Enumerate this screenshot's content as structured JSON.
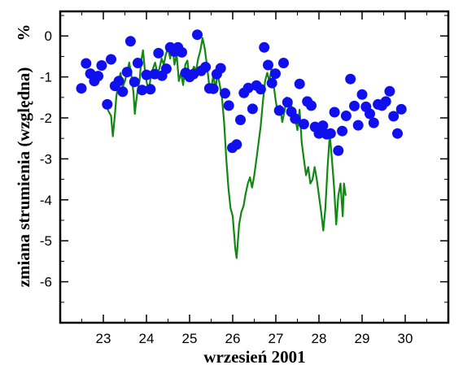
{
  "chart_data": {
    "type": "scatter",
    "xlabel": "wrzesień  2001",
    "ylabel": "zmiana strumienia (względna)",
    "yunit": "%",
    "xlim": [
      22.0,
      31.0
    ],
    "ylim": [
      -7.0,
      0.6
    ],
    "x_ticks": [
      23,
      24,
      25,
      26,
      27,
      28,
      29,
      30
    ],
    "y_ticks": [
      0,
      -1,
      -2,
      -3,
      -4,
      -5,
      -6
    ],
    "grid": false,
    "legend": "none",
    "colors": {
      "points": "#1010ee",
      "line": "#118811",
      "axes": "#000000"
    },
    "series": [
      {
        "kind": "points",
        "points": [
          [
            22.49,
            -1.28
          ],
          [
            22.6,
            -0.67
          ],
          [
            22.7,
            -0.92
          ],
          [
            22.79,
            -1.1
          ],
          [
            22.88,
            -0.98
          ],
          [
            22.96,
            -0.72
          ],
          [
            23.09,
            -1.67
          ],
          [
            23.18,
            -0.57
          ],
          [
            23.27,
            -1.22
          ],
          [
            23.36,
            -1.1
          ],
          [
            23.45,
            -1.36
          ],
          [
            23.55,
            -0.88
          ],
          [
            23.63,
            -0.13
          ],
          [
            23.72,
            -1.12
          ],
          [
            23.8,
            -0.66
          ],
          [
            23.9,
            -1.32
          ],
          [
            24.0,
            -0.95
          ],
          [
            24.09,
            -1.3
          ],
          [
            24.19,
            -0.93
          ],
          [
            24.28,
            -0.42
          ],
          [
            24.36,
            -0.97
          ],
          [
            24.46,
            -0.8
          ],
          [
            24.55,
            -0.28
          ],
          [
            24.65,
            -0.38
          ],
          [
            24.73,
            -0.28
          ],
          [
            24.82,
            -0.4
          ],
          [
            24.91,
            -0.9
          ],
          [
            25.0,
            -1.0
          ],
          [
            25.09,
            -0.93
          ],
          [
            25.18,
            0.03
          ],
          [
            25.27,
            -0.85
          ],
          [
            25.37,
            -0.76
          ],
          [
            25.46,
            -1.28
          ],
          [
            25.55,
            -1.29
          ],
          [
            25.63,
            -0.93
          ],
          [
            25.72,
            -0.79
          ],
          [
            25.82,
            -1.4
          ],
          [
            25.91,
            -1.7
          ],
          [
            25.99,
            -2.73
          ],
          [
            26.09,
            -2.65
          ],
          [
            26.18,
            -2.05
          ],
          [
            26.26,
            -1.39
          ],
          [
            26.36,
            -1.27
          ],
          [
            26.46,
            -1.78
          ],
          [
            26.55,
            -1.21
          ],
          [
            26.65,
            -1.3
          ],
          [
            26.73,
            -0.28
          ],
          [
            26.82,
            -0.71
          ],
          [
            26.91,
            -1.15
          ],
          [
            26.99,
            -0.92
          ],
          [
            27.08,
            -1.82
          ],
          [
            27.18,
            -0.66
          ],
          [
            27.27,
            -1.62
          ],
          [
            27.36,
            -1.85
          ],
          [
            27.45,
            -2.02
          ],
          [
            27.55,
            -1.17
          ],
          [
            27.65,
            -2.15
          ],
          [
            27.73,
            -1.6
          ],
          [
            27.82,
            -1.7
          ],
          [
            27.91,
            -2.22
          ],
          [
            28.0,
            -2.38
          ],
          [
            28.09,
            -2.19
          ],
          [
            28.18,
            -2.4
          ],
          [
            28.27,
            -2.38
          ],
          [
            28.36,
            -1.86
          ],
          [
            28.45,
            -2.8
          ],
          [
            28.54,
            -2.32
          ],
          [
            28.63,
            -1.95
          ],
          [
            28.73,
            -1.05
          ],
          [
            28.82,
            -1.71
          ],
          [
            28.91,
            -2.18
          ],
          [
            29.0,
            -1.43
          ],
          [
            29.09,
            -1.73
          ],
          [
            29.18,
            -1.9
          ],
          [
            29.27,
            -2.12
          ],
          [
            29.37,
            -1.67
          ],
          [
            29.46,
            -1.7
          ],
          [
            29.55,
            -1.6
          ],
          [
            29.64,
            -1.35
          ],
          [
            29.73,
            -1.96
          ],
          [
            29.82,
            -2.38
          ],
          [
            29.91,
            -1.79
          ]
        ]
      },
      {
        "kind": "line",
        "points": [
          [
            23.1,
            -1.8
          ],
          [
            23.18,
            -1.95
          ],
          [
            23.22,
            -2.45
          ],
          [
            23.27,
            -1.9
          ],
          [
            23.3,
            -1.5
          ],
          [
            23.35,
            -1.1
          ],
          [
            23.4,
            -0.9
          ],
          [
            23.45,
            -1.25
          ],
          [
            23.5,
            -1.1
          ],
          [
            23.55,
            -0.9
          ],
          [
            23.6,
            -0.65
          ],
          [
            23.65,
            -0.95
          ],
          [
            23.7,
            -1.4
          ],
          [
            23.73,
            -1.9
          ],
          [
            23.76,
            -1.6
          ],
          [
            23.8,
            -1.3
          ],
          [
            23.84,
            -1.1
          ],
          [
            23.88,
            -0.6
          ],
          [
            23.92,
            -0.35
          ],
          [
            23.96,
            -0.8
          ],
          [
            24.0,
            -1.1
          ],
          [
            24.05,
            -1.35
          ],
          [
            24.1,
            -1.0
          ],
          [
            24.15,
            -0.8
          ],
          [
            24.2,
            -0.65
          ],
          [
            24.25,
            -0.9
          ],
          [
            24.3,
            -0.8
          ],
          [
            24.35,
            -0.55
          ],
          [
            24.4,
            -0.7
          ],
          [
            24.45,
            -0.45
          ],
          [
            24.5,
            -0.3
          ],
          [
            24.55,
            -0.55
          ],
          [
            24.6,
            -0.2
          ],
          [
            24.65,
            -0.7
          ],
          [
            24.7,
            -0.45
          ],
          [
            24.75,
            -1.1
          ],
          [
            24.8,
            -0.9
          ],
          [
            24.85,
            -1.2
          ],
          [
            24.9,
            -0.7
          ],
          [
            24.95,
            -0.6
          ],
          [
            25.0,
            -1.1
          ],
          [
            25.05,
            -0.9
          ],
          [
            25.1,
            -0.75
          ],
          [
            25.15,
            -0.85
          ],
          [
            25.2,
            -0.55
          ],
          [
            25.25,
            -0.35
          ],
          [
            25.3,
            -0.05
          ],
          [
            25.35,
            -0.3
          ],
          [
            25.4,
            -0.7
          ],
          [
            25.45,
            -1.15
          ],
          [
            25.5,
            -1.3
          ],
          [
            25.55,
            -0.95
          ],
          [
            25.6,
            -1.3
          ],
          [
            25.65,
            -0.9
          ],
          [
            25.7,
            -1.2
          ],
          [
            25.75,
            -1.5
          ],
          [
            25.8,
            -2.1
          ],
          [
            25.85,
            -3.0
          ],
          [
            25.9,
            -3.7
          ],
          [
            25.95,
            -4.2
          ],
          [
            26.0,
            -4.4
          ],
          [
            26.03,
            -4.8
          ],
          [
            26.06,
            -5.2
          ],
          [
            26.09,
            -5.42
          ],
          [
            26.12,
            -5.0
          ],
          [
            26.15,
            -4.6
          ],
          [
            26.2,
            -4.3
          ],
          [
            26.25,
            -4.15
          ],
          [
            26.3,
            -3.85
          ],
          [
            26.35,
            -3.6
          ],
          [
            26.4,
            -3.45
          ],
          [
            26.45,
            -3.7
          ],
          [
            26.5,
            -3.4
          ],
          [
            26.55,
            -3.0
          ],
          [
            26.6,
            -2.6
          ],
          [
            26.65,
            -2.2
          ],
          [
            26.7,
            -1.6
          ],
          [
            26.75,
            -1.1
          ],
          [
            26.8,
            -0.9
          ],
          [
            26.85,
            -1.1
          ],
          [
            26.9,
            -0.8
          ],
          [
            26.95,
            -1.2
          ],
          [
            27.0,
            -1.6
          ],
          [
            27.05,
            -1.9
          ],
          [
            27.1,
            -1.7
          ],
          [
            27.15,
            -2.1
          ],
          [
            27.2,
            -1.85
          ],
          [
            27.25,
            -1.5
          ],
          [
            27.3,
            -1.7
          ],
          [
            27.35,
            -1.6
          ],
          [
            27.4,
            -2.1
          ],
          [
            27.45,
            -2.0
          ],
          [
            27.5,
            -2.3
          ],
          [
            27.55,
            -1.8
          ],
          [
            27.6,
            -2.6
          ],
          [
            27.65,
            -3.0
          ],
          [
            27.7,
            -3.4
          ],
          [
            27.75,
            -3.2
          ],
          [
            27.8,
            -3.6
          ],
          [
            27.85,
            -3.5
          ],
          [
            27.9,
            -3.2
          ],
          [
            27.95,
            -3.5
          ],
          [
            28.0,
            -3.9
          ],
          [
            28.05,
            -4.3
          ],
          [
            28.1,
            -4.75
          ],
          [
            28.15,
            -4.2
          ],
          [
            28.2,
            -3.2
          ],
          [
            28.25,
            -2.4
          ],
          [
            28.3,
            -3.0
          ],
          [
            28.35,
            -3.7
          ],
          [
            28.4,
            -4.6
          ],
          [
            28.45,
            -3.9
          ],
          [
            28.5,
            -3.6
          ],
          [
            28.55,
            -4.4
          ],
          [
            28.58,
            -3.6
          ],
          [
            28.62,
            -3.9
          ]
        ]
      }
    ]
  }
}
